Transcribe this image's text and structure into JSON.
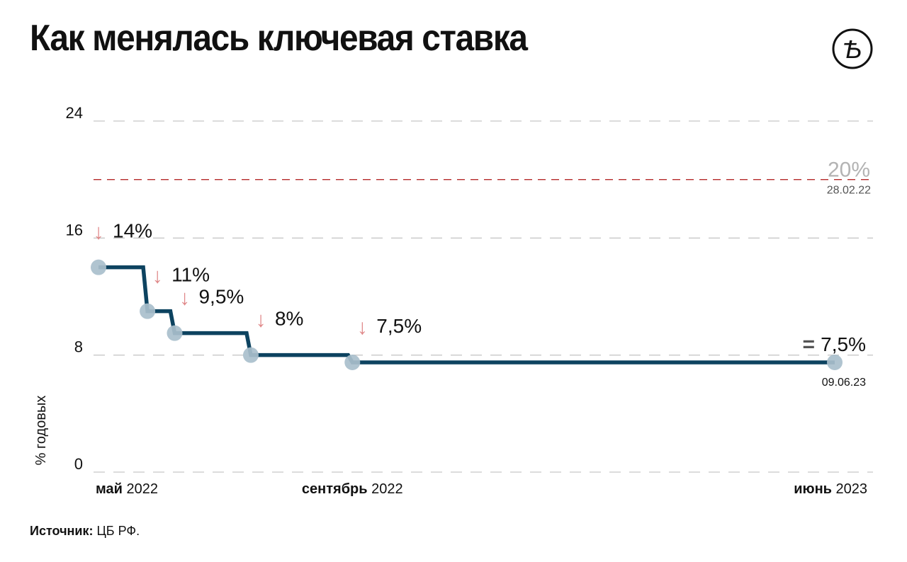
{
  "header": {
    "title": "Как менялась ключевая ставка"
  },
  "logo": {
    "icon": "newspaper-logo-icon",
    "glyph": "Ѣ"
  },
  "source": {
    "label": "Источник:",
    "value": " ЦБ РФ."
  },
  "colors": {
    "line": "#0d4360",
    "point": "#a9bfcc",
    "arrow": "#e0898a",
    "ref_line": "#b52a2a",
    "grid": "#c8c8c8",
    "ref_label": "#b3b3b3"
  },
  "chart_data": {
    "type": "line",
    "step": true,
    "ylabel": "% годовых",
    "ylim": [
      0,
      24
    ],
    "yticks": [
      "0",
      "8",
      "16",
      "24"
    ],
    "xticks": [
      {
        "date": "2022-05-26",
        "bold": "май",
        "rest": " 2022"
      },
      {
        "date": "2022-09-16",
        "bold": "сентябрь",
        "rest": " 2022"
      },
      {
        "date": "2023-06-09",
        "bold": "июнь",
        "rest": " 2023"
      }
    ],
    "series": [
      {
        "points": [
          {
            "date": "2022-04-29",
            "value": 14,
            "label": "14%",
            "marker": "↓"
          },
          {
            "date": "2022-05-26",
            "value": 11,
            "label": "11%",
            "marker": "↓"
          },
          {
            "date": "2022-06-10",
            "value": 9.5,
            "label": "9,5%",
            "marker": "↓"
          },
          {
            "date": "2022-07-22",
            "value": 8,
            "label": "8%",
            "marker": "↓"
          },
          {
            "date": "2022-09-16",
            "value": 7.5,
            "label": "7,5%",
            "marker": "↓"
          },
          {
            "date": "2023-06-09",
            "value": 7.5,
            "label": "7,5%",
            "marker": "=",
            "date_label": "09.06.23"
          }
        ]
      }
    ],
    "reference": {
      "value": 20,
      "label": "20%",
      "date_label": "28.02.22"
    }
  }
}
